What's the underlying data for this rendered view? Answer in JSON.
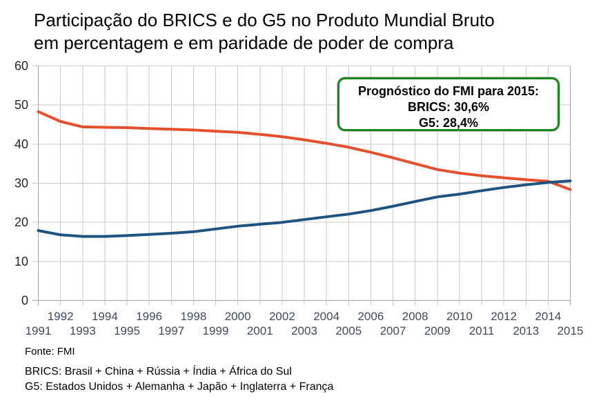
{
  "title": {
    "line1": "Participação do BRICS e do G5 no Produto Mundial Bruto",
    "line2": "em percentagem e em paridade de poder de compra"
  },
  "annotation": {
    "line1": "Prognóstico do FMI para 2015:",
    "line2": "BRICS: 30,6%",
    "line3": "G5: 28,4%"
  },
  "footer": {
    "source": "Fonte: FMI",
    "brics_definition": "BRICS: Brasil + China + Rússia + Índia + África do Sul",
    "g5_definition": "G5: Estados Unidos + Alemanha + Japão + Inglaterra + França"
  },
  "colors": {
    "g5_line": "#E4502D",
    "brics_line": "#1F5380",
    "grid": "#c8c8c8",
    "axis": "#a0a0a0",
    "x_label": "#3F4A5C",
    "y_label": "#262626",
    "annotation_border": "#1A871A"
  },
  "chart_data": {
    "type": "line",
    "x": [
      1991,
      1992,
      1993,
      1994,
      1995,
      1996,
      1997,
      1998,
      1999,
      2000,
      2001,
      2002,
      2003,
      2004,
      2005,
      2006,
      2007,
      2008,
      2009,
      2010,
      2011,
      2012,
      2013,
      2014,
      2015
    ],
    "series": [
      {
        "name": "G5",
        "color": "#E4502D",
        "values": [
          48.3,
          45.8,
          44.4,
          44.3,
          44.2,
          44.0,
          43.8,
          43.6,
          43.3,
          43.0,
          42.5,
          41.9,
          41.1,
          40.2,
          39.2,
          37.9,
          36.5,
          35.0,
          33.5,
          32.6,
          31.9,
          31.4,
          30.9,
          30.5,
          28.4
        ]
      },
      {
        "name": "BRICS",
        "color": "#1F5380",
        "values": [
          17.9,
          16.8,
          16.4,
          16.4,
          16.6,
          16.9,
          17.2,
          17.6,
          18.3,
          19.0,
          19.5,
          20.0,
          20.7,
          21.4,
          22.1,
          23.0,
          24.1,
          25.3,
          26.5,
          27.2,
          28.1,
          28.9,
          29.6,
          30.2,
          30.6
        ]
      }
    ],
    "title": "Participação do BRICS e do G5 no Produto Mundial Bruto em percentagem e em paridade de poder de compra",
    "xlabel": "",
    "ylabel": "",
    "xlim": [
      1991,
      2015
    ],
    "ylim": [
      0,
      60
    ],
    "yticks": [
      0,
      10,
      20,
      30,
      40,
      50,
      60
    ],
    "xticks_row_top": [
      1992,
      1994,
      1996,
      1998,
      2000,
      2002,
      2004,
      2006,
      2008,
      2010,
      2012,
      2014
    ],
    "xticks_row_bottom": [
      1991,
      1993,
      1995,
      1997,
      1999,
      2001,
      2003,
      2005,
      2007,
      2009,
      2011,
      2013,
      2015
    ],
    "grid": true,
    "legend_position": "none"
  }
}
